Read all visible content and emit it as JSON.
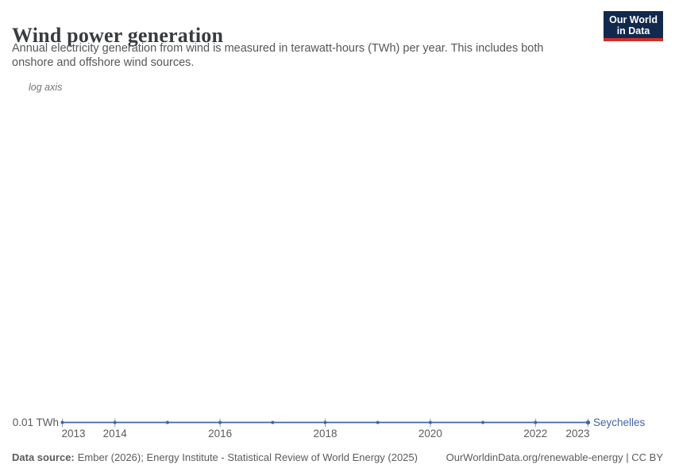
{
  "header": {
    "title": "Wind power generation",
    "subtitle_lines": [
      "Annual electricity generation from wind is measured in terawatt-hours (TWh) per year. This includes both",
      "onshore and offshore wind sources."
    ],
    "logo": {
      "line1": "Our World",
      "line2": "in Data"
    }
  },
  "chart_data": {
    "type": "line",
    "title": "Wind power generation",
    "axis_note": "log axis",
    "yscale": "log",
    "unit": "TWh",
    "grid": false,
    "x": [
      2013,
      2014,
      2015,
      2016,
      2017,
      2018,
      2019,
      2020,
      2021,
      2022,
      2023
    ],
    "series": [
      {
        "name": "Seychelles",
        "color": "#4164ab",
        "values": [
          0.01,
          0.01,
          0.01,
          0.01,
          0.01,
          0.01,
          0.01,
          0.01,
          0.01,
          0.01,
          0.01
        ]
      }
    ],
    "x_tick_labels": [
      "2013",
      "2014",
      "2016",
      "2018",
      "2020",
      "2022",
      "2023"
    ],
    "y_tick_labels": [
      "0.01 TWh"
    ],
    "tick_color": "#93a4c0",
    "axis_label_color": "#5b5b5b",
    "legend_position": "end-of-line"
  },
  "footer": {
    "datasource_label": "Data source:",
    "datasource_text": "Ember (2026); Energy Institute - Statistical Review of World Energy (2025)",
    "note_right": "OurWorldinData.org/renewable-energy | CC BY"
  },
  "colors": {
    "logo_bg": "#12294e",
    "logo_underline": "#cf2e27",
    "series_blue": "#4164ab",
    "text_gray": "#5b5b5b",
    "title_color": "#383c40"
  }
}
